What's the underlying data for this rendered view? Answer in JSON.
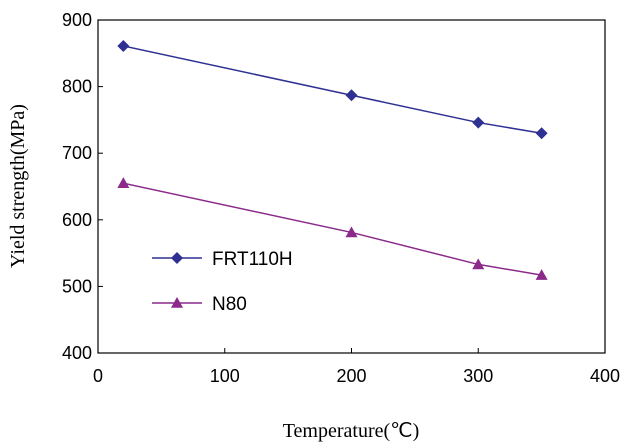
{
  "chart_data": {
    "type": "line",
    "xlabel": "Temperature(℃)",
    "ylabel": "Yield strength(MPa)",
    "xlim": [
      0,
      400
    ],
    "ylim": [
      400,
      900
    ],
    "xticks": [
      0,
      100,
      200,
      300,
      400
    ],
    "yticks": [
      400,
      500,
      600,
      700,
      800,
      900
    ],
    "xtick_labels": [
      "0",
      "100",
      "200",
      "300",
      "400"
    ],
    "ytick_labels": [
      "400",
      "500",
      "600",
      "700",
      "800",
      "900"
    ],
    "grid": false,
    "legend_position": "center-left",
    "series": [
      {
        "name": "FRT110H",
        "marker": "diamond",
        "color": "#2e3192",
        "x": [
          20,
          200,
          300,
          350
        ],
        "y": [
          861,
          787,
          746,
          730
        ]
      },
      {
        "name": "N80",
        "marker": "triangle",
        "color": "#8b2a8b",
        "x": [
          20,
          200,
          300,
          350
        ],
        "y": [
          655,
          581,
          533,
          517
        ]
      }
    ]
  }
}
